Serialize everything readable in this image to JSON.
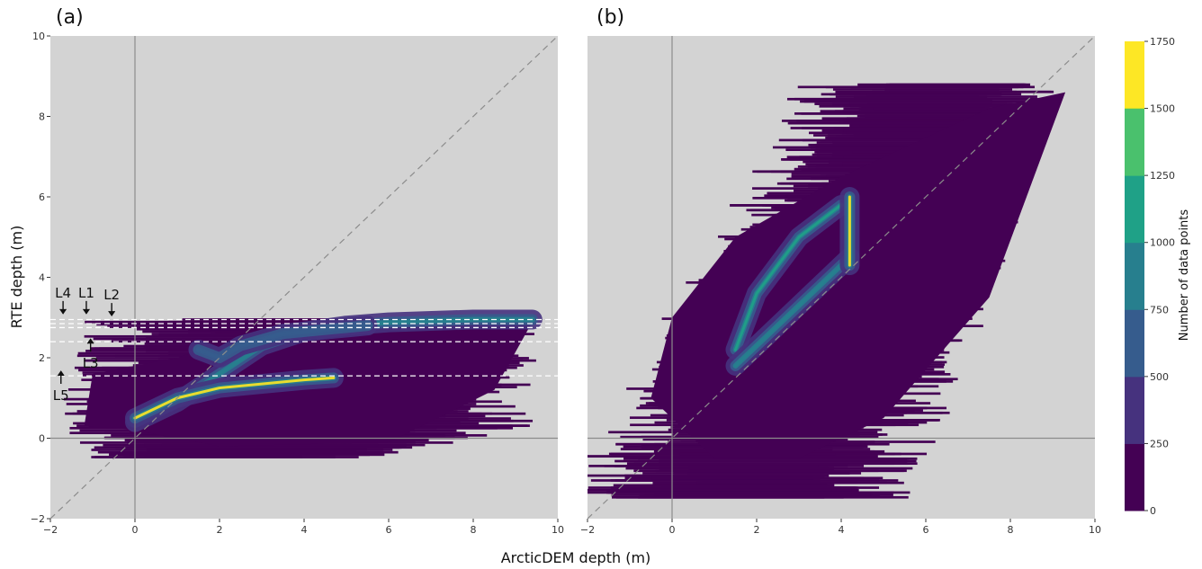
{
  "chart_data": [
    {
      "type": "heatmap",
      "panel_label": "(a)",
      "xlim": [
        -2,
        10
      ],
      "ylim": [
        -2,
        10
      ],
      "x_ticks": [
        "−2",
        "0",
        "2",
        "4",
        "6",
        "8",
        "10"
      ],
      "y_ticks": [
        "−2",
        "0",
        "2",
        "4",
        "6",
        "8",
        "10"
      ],
      "reference_lines": {
        "x": 0,
        "y": 0,
        "one_to_one": true
      },
      "lake_levels": [
        {
          "name": "L4",
          "y": 2.95
        },
        {
          "name": "L1",
          "y": 2.85
        },
        {
          "name": "L2",
          "y": 2.75
        },
        {
          "name": "L3",
          "y": 2.4
        },
        {
          "name": "L5",
          "y": 1.55
        }
      ],
      "annotations": [
        {
          "text": "L4",
          "x": -1.7,
          "y": 3.5,
          "arrow": "down"
        },
        {
          "text": "L1",
          "x": -1.15,
          "y": 3.5,
          "arrow": "down"
        },
        {
          "text": "L2",
          "x": -0.55,
          "y": 3.45,
          "arrow": "down"
        },
        {
          "text": "L3",
          "x": -1.05,
          "y": 1.75,
          "arrow": "up"
        },
        {
          "text": "L5",
          "x": -1.75,
          "y": 0.95,
          "arrow": "up"
        }
      ],
      "density_features": [
        {
          "kind": "background_blob",
          "x_range": [
            -1.8,
            9.5
          ],
          "y_range": [
            -0.5,
            2.95
          ]
        },
        {
          "kind": "ridge",
          "points": [
            [
              0,
              0.4
            ],
            [
              1,
              0.9
            ],
            [
              2,
              1.6
            ],
            [
              3,
              2.3
            ],
            [
              4,
              2.65
            ],
            [
              5,
              2.8
            ],
            [
              6,
              2.88
            ],
            [
              8,
              2.95
            ],
            [
              9.4,
              2.95
            ]
          ],
          "peak_count": 900
        },
        {
          "kind": "ridge",
          "points": [
            [
              0,
              0.5
            ],
            [
              1,
              1.0
            ],
            [
              2,
              1.25
            ],
            [
              3,
              1.35
            ],
            [
              4,
              1.45
            ],
            [
              4.7,
              1.5
            ]
          ],
          "peak_count": 1750
        },
        {
          "kind": "ridge",
          "points": [
            [
              1.5,
              2.2
            ],
            [
              2,
              2.0
            ],
            [
              2.5,
              2.3
            ],
            [
              3.5,
              2.6
            ],
            [
              5.5,
              2.8
            ]
          ],
          "peak_count": 700
        }
      ]
    },
    {
      "type": "heatmap",
      "panel_label": "(b)",
      "xlim": [
        -2,
        10
      ],
      "ylim": [
        -2,
        10
      ],
      "x_ticks": [
        "−2",
        "0",
        "2",
        "4",
        "6",
        "8",
        "10"
      ],
      "y_ticks": [],
      "reference_lines": {
        "x": 0,
        "y": 0,
        "one_to_one": true
      },
      "density_features": [
        {
          "kind": "background_blob",
          "x_range": [
            -1.5,
            9.5
          ],
          "y_range": [
            -1.5,
            8.8
          ]
        },
        {
          "kind": "ridge",
          "points": [
            [
              1.5,
              2.2
            ],
            [
              2,
              3.6
            ],
            [
              3,
              5.0
            ],
            [
              4,
              5.8
            ]
          ],
          "peak_count": 1000
        },
        {
          "kind": "ridge",
          "points": [
            [
              1.5,
              1.8
            ],
            [
              2.5,
              2.8
            ],
            [
              3.5,
              3.8
            ],
            [
              4.2,
              4.5
            ]
          ],
          "peak_count": 800
        },
        {
          "kind": "ridge",
          "points": [
            [
              4.2,
              4.3
            ],
            [
              4.2,
              5.0
            ],
            [
              4.2,
              5.6
            ],
            [
              4.2,
              6.0
            ]
          ],
          "peak_count": 1750
        }
      ]
    }
  ],
  "shared_xlabel": "ArcticDEM depth (m)",
  "shared_ylabel": "RTE depth (m)",
  "colorbar": {
    "label": "Number of data points",
    "ticks": [
      "0",
      "250",
      "500",
      "750",
      "1000",
      "1250",
      "1500",
      "1750"
    ],
    "colors": [
      "#440154",
      "#46327e",
      "#365c8d",
      "#277f8e",
      "#1fa187",
      "#4ac16d",
      "#a0da39",
      "#fde725"
    ]
  },
  "colors": {
    "panel_background": "#d3d3d3",
    "reference_line": "#8c8c8c",
    "level_line": "#ffffff"
  }
}
